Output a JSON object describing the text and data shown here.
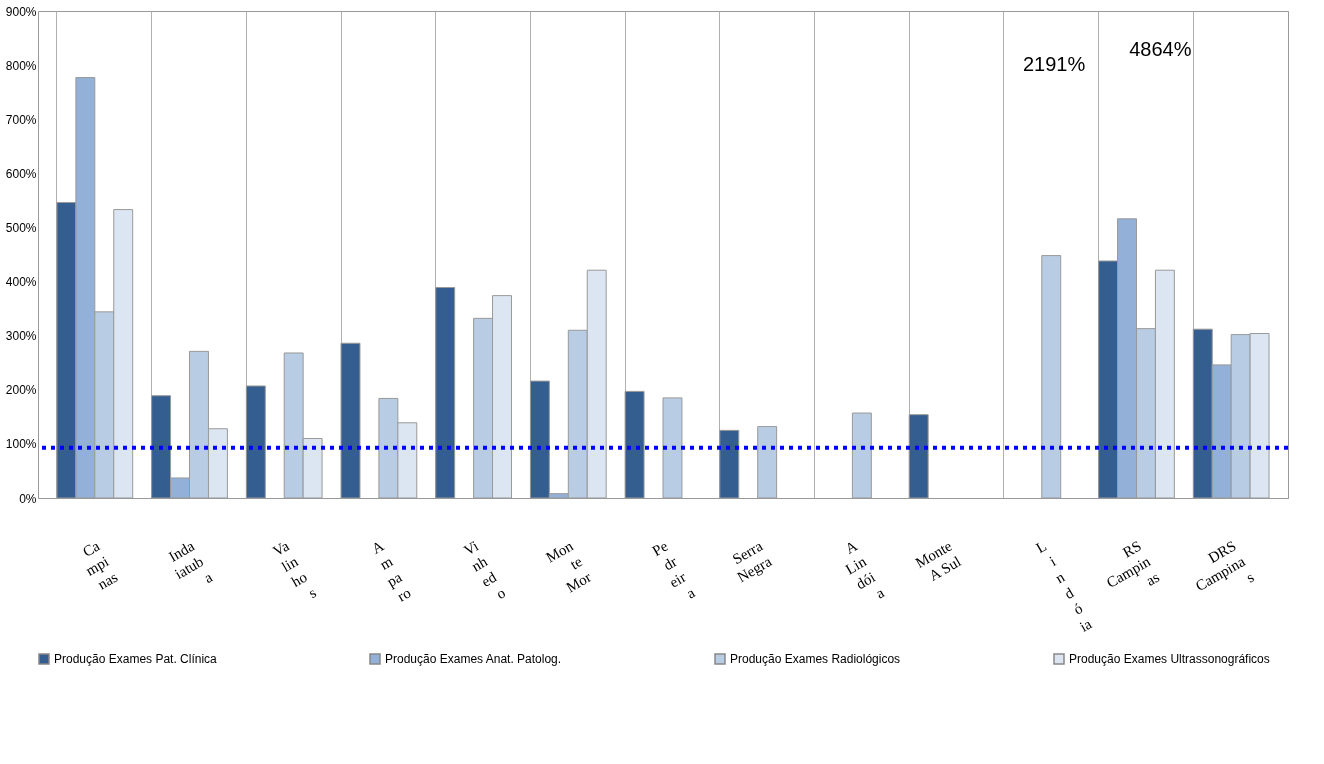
{
  "chart_data": {
    "type": "bar",
    "categories": [
      "Ca\nmpi\nnas",
      "Inda\niatub\na",
      "Va\nlin\nho\ns",
      "A\nm\npa\nro",
      "Vi\nnh\ned\no",
      "Mon\nte\nMor",
      "Pe\ndr\neir\na",
      "Serra\nNegra",
      "A\nLin\ndói\na",
      "Monte\nA Sul",
      "L\ni\nn\nd\nó\nia",
      "RS\nCampin\nas",
      "DRS\nCampina\ns"
    ],
    "series": [
      {
        "name": "Produção Exames Pat. Clínica",
        "color": "#345e8f",
        "values": [
          546,
          189,
          207,
          286,
          389,
          216,
          197,
          125,
          null,
          154,
          null,
          438,
          312
        ]
      },
      {
        "name": "Produção Exames Anat. Patolog.",
        "color": "#93b1d8",
        "values": [
          777,
          37,
          null,
          null,
          null,
          8,
          null,
          null,
          null,
          null,
          null,
          516,
          246
        ]
      },
      {
        "name": "Produção Exames Radiológicos",
        "color": "#b8cce4",
        "values": [
          344,
          271,
          268,
          184,
          332,
          310,
          185,
          132,
          157,
          null,
          448,
          313,
          302
        ]
      },
      {
        "name": "Produção Exames Ultrassonográficos",
        "color": "#dce6f2",
        "values": [
          533,
          128,
          110,
          139,
          374,
          421,
          null,
          null,
          null,
          null,
          null,
          421,
          304
        ]
      }
    ],
    "ylim": [
      0,
      900
    ],
    "yticks": [
      {
        "value": 0,
        "label": "0%"
      },
      {
        "value": 100,
        "label": "100%"
      },
      {
        "value": 200,
        "label": "200%"
      },
      {
        "value": 300,
        "label": "300%"
      },
      {
        "value": 400,
        "label": "400%"
      },
      {
        "value": 500,
        "label": "500%"
      },
      {
        "value": 600,
        "label": "600%"
      },
      {
        "value": 700,
        "label": "700%"
      },
      {
        "value": 800,
        "label": "800%"
      },
      {
        "value": 900,
        "label": "900%"
      }
    ],
    "annotations": [
      "2191%",
      "4864%"
    ],
    "grid": "x",
    "legend": "bottom",
    "ref_lines": [
      {
        "axis": "y",
        "value": 93,
        "color": "#0000ff",
        "line_style": "dotted"
      }
    ]
  }
}
